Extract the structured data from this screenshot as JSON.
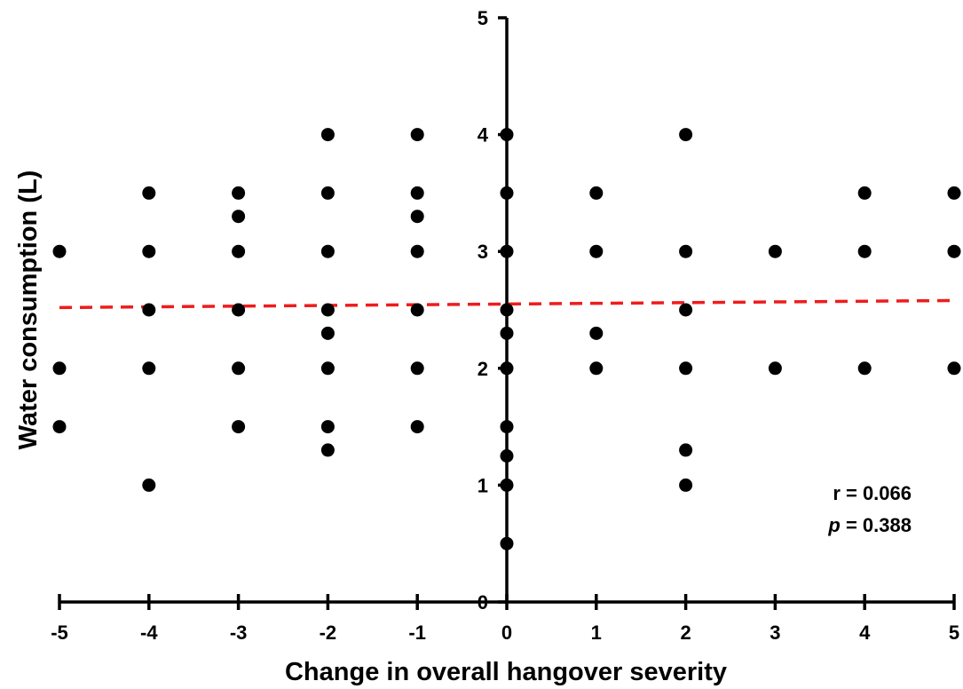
{
  "chart_data": {
    "type": "scatter",
    "title": "",
    "xlabel": "Change in overall hangover severity",
    "ylabel": "Water consumption (L)",
    "xlim": [
      -5,
      5
    ],
    "ylim": [
      0,
      5
    ],
    "x_ticks": [
      "-5",
      "-4",
      "-3",
      "-2",
      "-1",
      "0",
      "1",
      "2",
      "3",
      "4",
      "5"
    ],
    "y_ticks": [
      "0",
      "1",
      "2",
      "3",
      "4",
      "5"
    ],
    "grid": false,
    "points": [
      [
        -5,
        3
      ],
      [
        -5,
        2
      ],
      [
        -5,
        1.5
      ],
      [
        -4,
        3.5
      ],
      [
        -4,
        3
      ],
      [
        -4,
        2.5
      ],
      [
        -4,
        2
      ],
      [
        -4,
        1
      ],
      [
        -3,
        3.5
      ],
      [
        -3,
        3.3
      ],
      [
        -3,
        3
      ],
      [
        -3,
        2.5
      ],
      [
        -3,
        2
      ],
      [
        -3,
        1.5
      ],
      [
        -2,
        4
      ],
      [
        -2,
        3.5
      ],
      [
        -2,
        3
      ],
      [
        -2,
        2.5
      ],
      [
        -2,
        2.3
      ],
      [
        -2,
        2
      ],
      [
        -2,
        1.5
      ],
      [
        -2,
        1.3
      ],
      [
        -1,
        4
      ],
      [
        -1,
        3.5
      ],
      [
        -1,
        3.3
      ],
      [
        -1,
        3
      ],
      [
        -1,
        2.5
      ],
      [
        -1,
        2
      ],
      [
        -1,
        1.5
      ],
      [
        0,
        4
      ],
      [
        0,
        3.5
      ],
      [
        0,
        3
      ],
      [
        0,
        2.5
      ],
      [
        0,
        2.3
      ],
      [
        0,
        2
      ],
      [
        0,
        1.5
      ],
      [
        0,
        1.25
      ],
      [
        0,
        1
      ],
      [
        0,
        0.5
      ],
      [
        1,
        3.5
      ],
      [
        1,
        3
      ],
      [
        1,
        2.3
      ],
      [
        1,
        2
      ],
      [
        2,
        4
      ],
      [
        2,
        3
      ],
      [
        2,
        2.5
      ],
      [
        2,
        2
      ],
      [
        2,
        1.3
      ],
      [
        2,
        1
      ],
      [
        3,
        3
      ],
      [
        3,
        2
      ],
      [
        4,
        3.5
      ],
      [
        4,
        3
      ],
      [
        4,
        2
      ],
      [
        5,
        3.5
      ],
      [
        5,
        3
      ],
      [
        5,
        2
      ]
    ],
    "trendline": {
      "color": "#ee1c1c",
      "style": "dashed",
      "x": [
        -5,
        5
      ],
      "y": [
        2.52,
        2.58
      ]
    },
    "point_color": "#000000",
    "annotations": {
      "r": "r = 0.066",
      "p_symbol": "p",
      "p_value": " = 0.388"
    }
  }
}
